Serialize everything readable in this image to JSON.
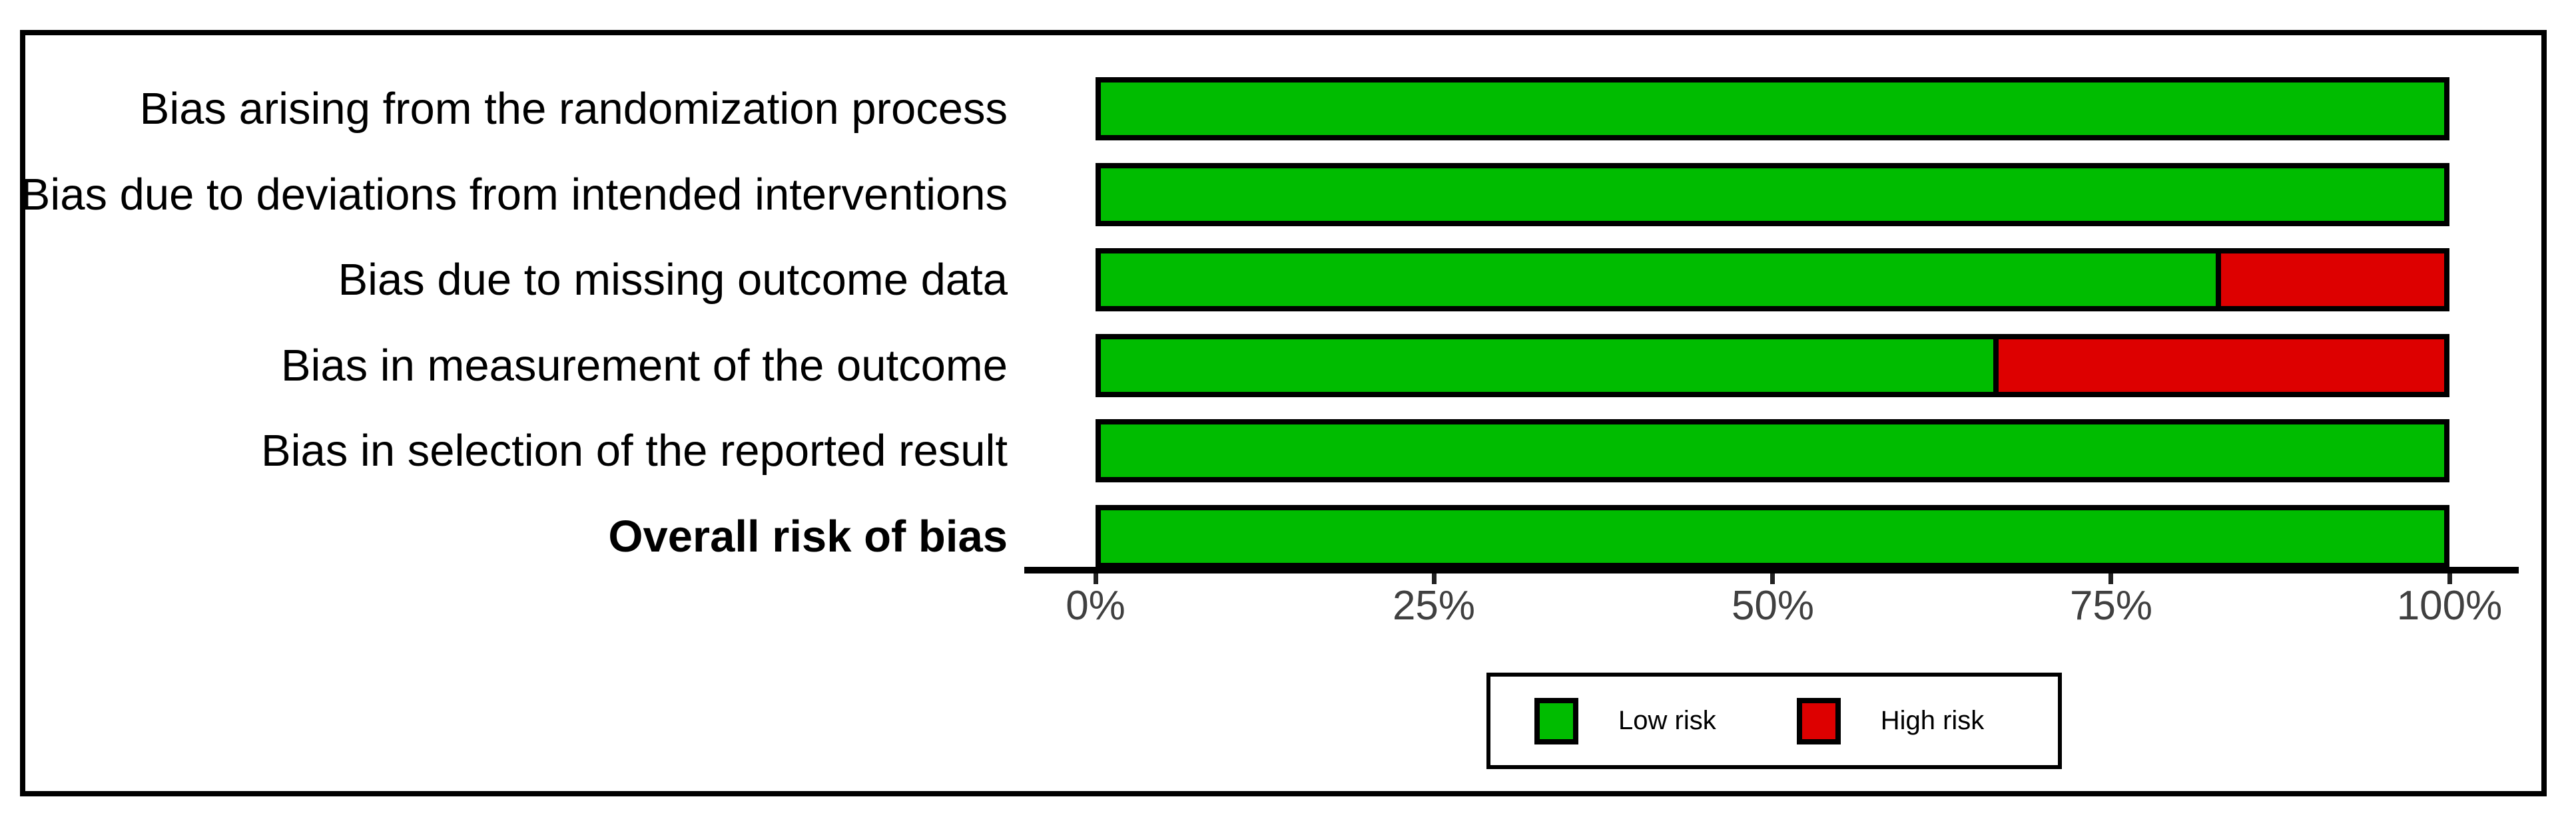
{
  "chart_data": {
    "type": "bar",
    "orientation": "horizontal",
    "stacked": true,
    "title": "",
    "xlabel": "",
    "ylabel": "",
    "xlim": [
      0,
      100
    ],
    "grid": false,
    "x_ticks": [
      {
        "value": 0,
        "label": "0%"
      },
      {
        "value": 25,
        "label": "25%"
      },
      {
        "value": 50,
        "label": "50%"
      },
      {
        "value": 75,
        "label": "75%"
      },
      {
        "value": 100,
        "label": "100%"
      }
    ],
    "categories": [
      "Bias arising from the randomization process",
      "Bias due to deviations from intended interventions",
      "Bias due to missing outcome data",
      "Bias in measurement of the outcome",
      "Bias in selection of the reported result",
      "Overall risk of bias"
    ],
    "bold_category_index": 5,
    "series": [
      {
        "name": "Low risk",
        "color": "#00BC00",
        "values": [
          100,
          100,
          83.3,
          66.7,
          100,
          100
        ]
      },
      {
        "name": "High risk",
        "color": "#DD0000",
        "values": [
          0,
          0,
          16.7,
          33.3,
          0,
          0
        ]
      }
    ],
    "legend": {
      "position": "bottom",
      "items": [
        {
          "label": "Low risk",
          "color": "#00BC00"
        },
        {
          "label": "High risk",
          "color": "#DD0000"
        }
      ]
    }
  },
  "colors": {
    "low_risk": "#00BC00",
    "high_risk": "#DD0000",
    "bar_border": "#000000",
    "axis_line": "#000000",
    "tick_mark": "#222222",
    "tick_label": "#404040",
    "frame": "#000000",
    "background": "#FFFFFF"
  }
}
